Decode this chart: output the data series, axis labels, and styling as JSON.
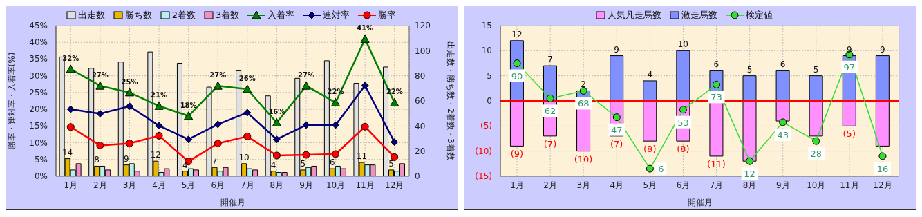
{
  "chart_data": [
    {
      "type": "bar",
      "xlabel": "開催月",
      "ylabel": "勝率・連対率・入着率(%)",
      "y2label": "出走数・勝ち数・2着数・3着数",
      "categories": [
        "1月",
        "2月",
        "3月",
        "4月",
        "5月",
        "6月",
        "7月",
        "8月",
        "9月",
        "10月",
        "11月",
        "12月"
      ],
      "ylim": [
        0,
        45
      ],
      "yticks": [
        {
          "value": 0,
          "label": "0%"
        },
        {
          "value": 5,
          "label": "5%"
        },
        {
          "value": 10,
          "label": "10%"
        },
        {
          "value": 15,
          "label": "15%"
        },
        {
          "value": 20,
          "label": "20%"
        },
        {
          "value": 25,
          "label": "25%"
        },
        {
          "value": 30,
          "label": "30%"
        },
        {
          "value": 35,
          "label": "35%"
        },
        {
          "value": 40,
          "label": "40%"
        },
        {
          "value": 45,
          "label": "45%"
        }
      ],
      "y2lim": [
        0,
        120
      ],
      "y2ticks": [
        0,
        20,
        40,
        60,
        80,
        100,
        120
      ],
      "grid": true,
      "legend": "top",
      "series": [
        {
          "name": "出走数",
          "axis": "y2",
          "color": "#e0e0e0",
          "values": [
            95,
            86,
            91,
            99,
            90,
            71,
            84,
            64,
            78,
            92,
            74,
            87
          ]
        },
        {
          "name": "勝ち数",
          "axis": "y2",
          "color": "#e6b800",
          "values": [
            14,
            8,
            9,
            12,
            4,
            7,
            10,
            4,
            5,
            6,
            11,
            5
          ],
          "value_labels": [
            "14",
            "8",
            "9",
            "12",
            "4",
            "7",
            "10",
            "4",
            "5",
            "6",
            "11",
            "5"
          ]
        },
        {
          "name": "2着数",
          "axis": "y2",
          "color": "#b8f0f0",
          "values": [
            5,
            8,
            10,
            3,
            6,
            4,
            6,
            3,
            7,
            8,
            9,
            4
          ]
        },
        {
          "name": "3着数",
          "axis": "y2",
          "color": "#f090c0",
          "values": [
            10,
            5,
            4,
            6,
            5,
            7,
            5,
            3,
            8,
            6,
            9,
            10
          ]
        },
        {
          "name": "入着率",
          "type": "line",
          "color": "#008000",
          "marker": "triangle",
          "values": [
            32,
            27,
            25,
            21,
            18,
            27,
            26,
            16,
            27,
            22,
            41,
            22
          ],
          "value_labels": [
            "32%",
            "27%",
            "25%",
            "21%",
            "18%",
            "27%",
            "26%",
            "16%",
            "27%",
            "22%",
            "41%",
            "22%"
          ]
        },
        {
          "name": "連対率",
          "type": "line",
          "color": "#000080",
          "marker": "diamond",
          "values": [
            20,
            18.7,
            20.9,
            15.1,
            11,
            15.5,
            19,
            11,
            15.3,
            15.3,
            27.1,
            10.2
          ]
        },
        {
          "name": "勝率",
          "type": "line",
          "color": "#ff0000",
          "marker": "circle",
          "values": [
            14.7,
            9.2,
            9.8,
            12.1,
            4.4,
            9.8,
            11.9,
            6.2,
            6.4,
            6.6,
            14.8,
            5.7
          ]
        }
      ]
    },
    {
      "type": "bar",
      "xlabel": "開催月",
      "categories": [
        "1月",
        "2月",
        "3月",
        "4月",
        "5月",
        "6月",
        "7月",
        "8月",
        "9月",
        "10月",
        "11月",
        "12月"
      ],
      "ylim": [
        -15,
        15
      ],
      "yticks": [
        {
          "value": -15,
          "label": "(15)"
        },
        {
          "value": -10,
          "label": "(10)"
        },
        {
          "value": -5,
          "label": "(5)"
        },
        0,
        5,
        10,
        15
      ],
      "y2lim": [
        0,
        120
      ],
      "stacked": true,
      "grid": true,
      "legend": "top",
      "ref_lines": [
        {
          "axis": "y",
          "value": 0,
          "color": "#ff0000"
        }
      ],
      "series": [
        {
          "name": "人気凡走馬数",
          "color": "#ff90ff",
          "values": [
            -9,
            -7,
            -10,
            -7,
            -8,
            -8,
            -11,
            -12,
            -4,
            -7,
            -5,
            -9
          ],
          "value_labels": [
            "(9)",
            "(7)",
            "(10)",
            "(7)",
            "(8)",
            "(8)",
            "(11)",
            null,
            null,
            null,
            "(5)",
            null
          ]
        },
        {
          "name": "激走馬数",
          "color": "#8090ff",
          "values": [
            12,
            7,
            2,
            9,
            4,
            10,
            6,
            5,
            6,
            5,
            9,
            9
          ],
          "value_labels": [
            "12",
            "7",
            "2",
            "9",
            "4",
            "10",
            "6",
            "5",
            "6",
            "5",
            "9",
            "9"
          ]
        },
        {
          "name": "検定値",
          "type": "line",
          "axis": "y2",
          "color": "#33dd33",
          "marker": "circle",
          "values": [
            90,
            62,
            68,
            47,
            6,
            53,
            73,
            12,
            43,
            28,
            97,
            16
          ],
          "value_labels": [
            "90",
            "62",
            "68",
            "47",
            "6",
            "53",
            "73",
            "12",
            "43",
            "28",
            "97",
            "16"
          ]
        }
      ]
    }
  ]
}
